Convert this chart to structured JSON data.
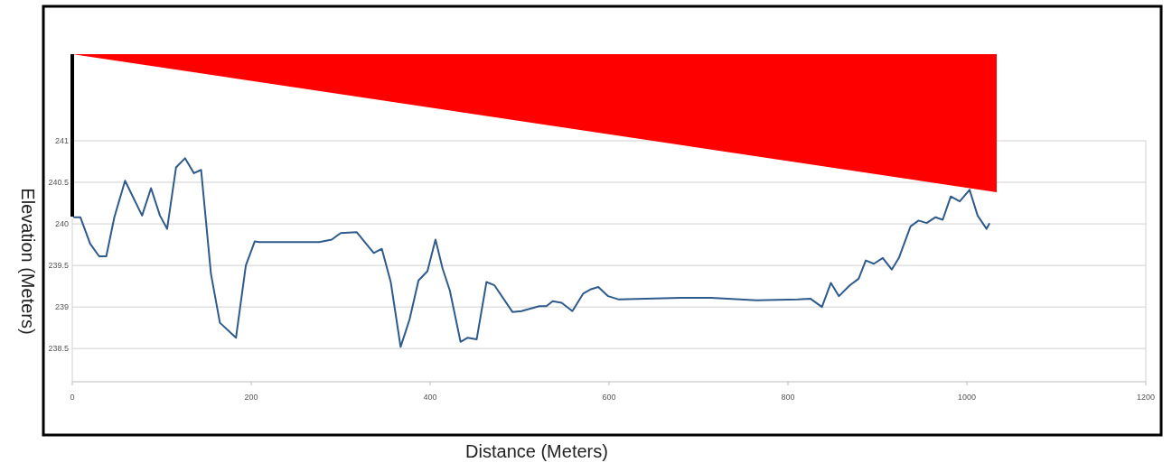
{
  "chart_data": {
    "type": "line",
    "xlabel": "Distance (Meters)",
    "ylabel": "Elevation (Meters)",
    "xlim": [
      0,
      1200
    ],
    "xticks": [
      0,
      200,
      400,
      600,
      800,
      1000,
      1200
    ],
    "ylim": [
      238.1,
      241
    ],
    "yticks": [
      238.5,
      239,
      239.5,
      240,
      240.5,
      241
    ],
    "grid": "y",
    "series": [
      {
        "color": "#2f5a8c",
        "x": [
          2,
          9,
          20,
          30,
          38,
          47,
          59,
          78,
          88,
          98,
          106,
          116,
          126,
          136,
          144,
          155,
          165,
          183,
          194,
          204,
          209,
          276,
          290,
          300,
          318,
          337,
          346,
          356,
          367,
          377,
          387,
          397,
          406,
          414,
          422,
          434,
          442,
          452,
          463,
          472,
          492,
          502,
          522,
          530,
          537,
          547,
          559,
          571,
          579,
          588,
          599,
          611,
          680,
          714,
          765,
          811,
          825,
          838,
          848,
          857,
          869,
          879,
          887,
          896,
          906,
          916,
          924,
          937,
          946,
          955,
          965,
          973,
          982,
          992,
          1003,
          1012,
          1022,
          1025
        ],
        "values": [
          240.08,
          240.08,
          239.76,
          239.61,
          239.61,
          240.08,
          240.52,
          240.1,
          240.43,
          240.1,
          239.94,
          240.68,
          240.79,
          240.61,
          240.65,
          239.4,
          238.81,
          238.63,
          239.5,
          239.79,
          239.78,
          239.78,
          239.81,
          239.89,
          239.9,
          239.65,
          239.7,
          239.3,
          238.52,
          238.85,
          239.32,
          239.43,
          239.81,
          239.46,
          239.2,
          238.58,
          238.63,
          238.61,
          239.3,
          239.26,
          238.94,
          238.95,
          239.01,
          239.01,
          239.07,
          239.05,
          238.95,
          239.16,
          239.21,
          239.24,
          239.13,
          239.09,
          239.11,
          239.11,
          239.08,
          239.09,
          239.1,
          239.0,
          239.29,
          239.13,
          239.26,
          239.34,
          239.56,
          239.52,
          239.59,
          239.45,
          239.59,
          239.97,
          240.04,
          240.01,
          240.08,
          240.05,
          240.33,
          240.27,
          240.41,
          240.1,
          239.94,
          240.0
        ]
      }
    ]
  }
}
